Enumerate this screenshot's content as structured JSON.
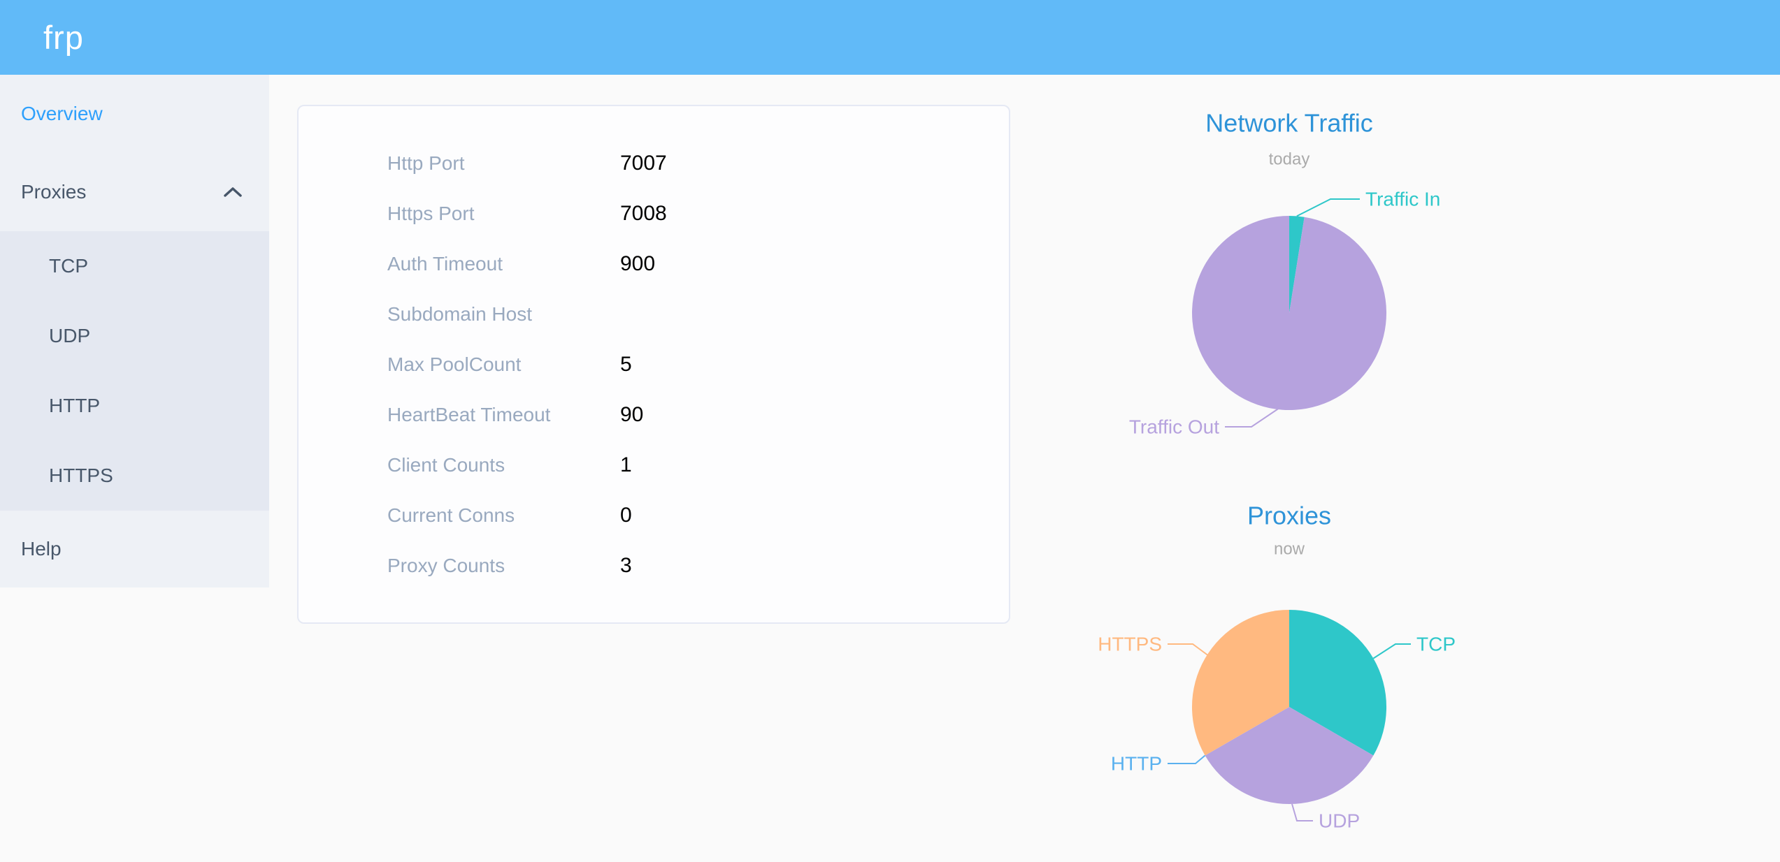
{
  "header": {
    "logo": "frp"
  },
  "sidebar": {
    "items": [
      {
        "label": "Overview",
        "active": true
      },
      {
        "label": "Proxies",
        "expanded": true,
        "children": [
          "TCP",
          "UDP",
          "HTTP",
          "HTTPS"
        ]
      },
      {
        "label": "Help"
      }
    ]
  },
  "card": {
    "rows": [
      {
        "label": "Http Port",
        "value": "7007"
      },
      {
        "label": "Https Port",
        "value": "7008"
      },
      {
        "label": "Auth Timeout",
        "value": "900"
      },
      {
        "label": "Subdomain Host",
        "value": ""
      },
      {
        "label": "Max PoolCount",
        "value": "5"
      },
      {
        "label": "HeartBeat Timeout",
        "value": "90"
      },
      {
        "label": "Client Counts",
        "value": "1"
      },
      {
        "label": "Current Conns",
        "value": "0"
      },
      {
        "label": "Proxy Counts",
        "value": "3"
      }
    ]
  },
  "theme": {
    "header_blue": "#61baf8",
    "active_menu_blue": "#2ea0fc",
    "chart_title_blue": "#2e93d8",
    "label_gray": "#99a9bf"
  },
  "chart_data": [
    {
      "type": "pie",
      "title": "Network Traffic",
      "subtitle": "today",
      "legend_position": "none",
      "labels": "outside",
      "slices": [
        {
          "name": "Traffic In",
          "value": 2.5,
          "color": "#2ec7c9"
        },
        {
          "name": "Traffic Out",
          "value": 97.5,
          "color": "#b6a2de"
        }
      ]
    },
    {
      "type": "pie",
      "title": "Proxies",
      "subtitle": "now",
      "legend_position": "none",
      "labels": "outside",
      "slices": [
        {
          "name": "TCP",
          "value": 1,
          "color": "#2ec7c9"
        },
        {
          "name": "UDP",
          "value": 1,
          "color": "#b6a2de"
        },
        {
          "name": "HTTP",
          "value": 0,
          "color": "#5ab1ef"
        },
        {
          "name": "HTTPS",
          "value": 1,
          "color": "#ffb980"
        }
      ]
    }
  ]
}
